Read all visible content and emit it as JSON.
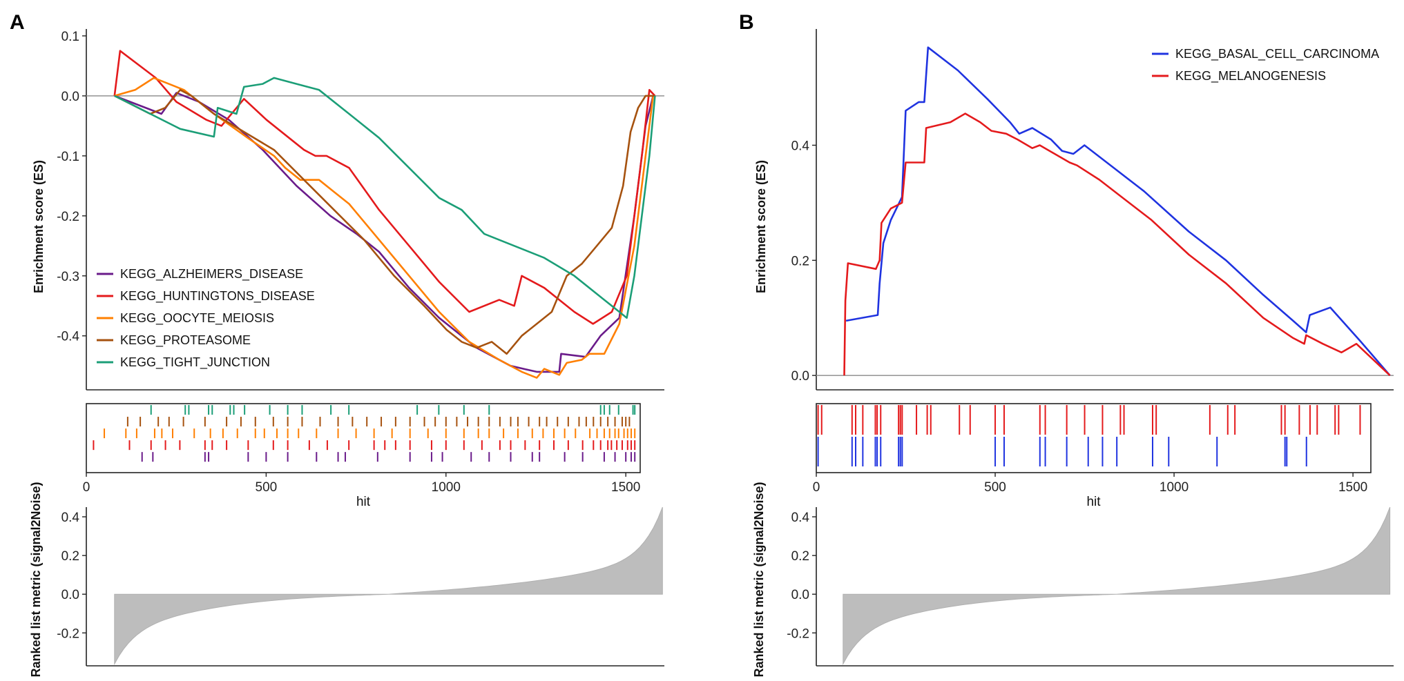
{
  "figure": {
    "panel_labels": [
      "A",
      "B"
    ]
  },
  "chart_data": [
    {
      "type": "line",
      "panel": "A",
      "title": "",
      "subplots": {
        "es": {
          "ylabel": "Enrichment score (ES)",
          "ylim": [
            -0.49,
            0.1
          ],
          "yticks": [
            0.1,
            0.0,
            -0.1,
            -0.2,
            -0.3,
            -0.4
          ],
          "ytick_labels": [
            "0.1",
            "0.0",
            "-0.1",
            "-0.2",
            "-0.3",
            "-0.4"
          ],
          "xlim": [
            0,
            1540
          ]
        },
        "hits": {
          "xlabel": "hit",
          "xticks": [
            0,
            500,
            1000,
            1500
          ],
          "xtick_labels": [
            "0",
            "500",
            "1000",
            "1500"
          ]
        },
        "metric": {
          "ylabel": "Ranked list metric (signal2Noise)",
          "ylim": [
            -0.37,
            0.45
          ],
          "yticks": [
            0.4,
            0.2,
            0.0,
            -0.2
          ],
          "ytick_labels": [
            "0.4",
            "0.2",
            "0.0",
            "-0.2"
          ],
          "x_range": [
            75,
            1535
          ],
          "min_value": -0.36,
          "max_value": 0.45
        }
      },
      "legend_position": "bottom-left",
      "series": [
        {
          "name": "KEGG_ALZHEIMERS_DISEASE",
          "color": "#6a1b8a",
          "x": [
            75,
            200,
            240,
            300,
            380,
            470,
            560,
            650,
            720,
            780,
            860,
            940,
            1040,
            1130,
            1200,
            1260,
            1265,
            1330,
            1370,
            1420,
            1460,
            1490,
            1510
          ],
          "y": [
            0.0,
            -0.03,
            0.005,
            -0.01,
            -0.04,
            -0.09,
            -0.15,
            -0.2,
            -0.23,
            -0.26,
            -0.32,
            -0.37,
            -0.42,
            -0.45,
            -0.46,
            -0.46,
            -0.43,
            -0.435,
            -0.4,
            -0.37,
            -0.2,
            -0.05,
            0.0
          ]
        },
        {
          "name": "KEGG_HUNTINGTONS_DISEASE",
          "color": "#e41a1c",
          "x": [
            75,
            90,
            185,
            240,
            320,
            360,
            420,
            480,
            540,
            580,
            610,
            640,
            700,
            780,
            860,
            940,
            1020,
            1100,
            1140,
            1160,
            1220,
            1300,
            1350,
            1400,
            1440,
            1470,
            1480,
            1500,
            1515
          ],
          "y": [
            0.0,
            0.075,
            0.03,
            -0.01,
            -0.04,
            -0.05,
            -0.005,
            -0.04,
            -0.07,
            -0.09,
            -0.1,
            -0.1,
            -0.12,
            -0.19,
            -0.25,
            -0.31,
            -0.36,
            -0.34,
            -0.35,
            -0.3,
            -0.32,
            -0.36,
            -0.38,
            -0.36,
            -0.3,
            -0.15,
            -0.1,
            0.01,
            0.0
          ]
        },
        {
          "name": "KEGG_OOCYTE_MEIOSIS",
          "color": "#ff7f00",
          "x": [
            75,
            130,
            180,
            260,
            340,
            430,
            500,
            530,
            570,
            610,
            620,
            660,
            700,
            780,
            860,
            940,
            1020,
            1100,
            1160,
            1200,
            1220,
            1260,
            1280,
            1320,
            1340,
            1380,
            1420,
            1460,
            1490,
            1510
          ],
          "y": [
            0.0,
            0.01,
            0.03,
            0.01,
            -0.03,
            -0.07,
            -0.1,
            -0.12,
            -0.14,
            -0.14,
            -0.14,
            -0.16,
            -0.18,
            -0.24,
            -0.3,
            -0.36,
            -0.41,
            -0.44,
            -0.46,
            -0.47,
            -0.455,
            -0.465,
            -0.445,
            -0.44,
            -0.43,
            -0.43,
            -0.38,
            -0.25,
            -0.1,
            0.0
          ]
        },
        {
          "name": "KEGG_PROTEASOME",
          "color": "#a6520f",
          "x": [
            75,
            170,
            210,
            250,
            280,
            340,
            420,
            500,
            580,
            660,
            740,
            820,
            900,
            960,
            1000,
            1040,
            1080,
            1120,
            1160,
            1200,
            1240,
            1280,
            1320,
            1360,
            1400,
            1430,
            1450,
            1470,
            1490,
            1505,
            1515
          ],
          "y": [
            0.0,
            -0.03,
            -0.02,
            0.01,
            0.0,
            -0.03,
            -0.06,
            -0.09,
            -0.14,
            -0.19,
            -0.24,
            -0.3,
            -0.35,
            -0.39,
            -0.41,
            -0.42,
            -0.41,
            -0.43,
            -0.4,
            -0.38,
            -0.36,
            -0.3,
            -0.28,
            -0.25,
            -0.22,
            -0.15,
            -0.06,
            -0.02,
            0.0,
            0.0,
            0.0
          ]
        },
        {
          "name": "KEGG_TIGHT_JUNCTION",
          "color": "#1b9e77",
          "x": [
            75,
            250,
            340,
            350,
            400,
            420,
            470,
            500,
            560,
            620,
            700,
            780,
            860,
            940,
            1000,
            1060,
            1140,
            1220,
            1300,
            1380,
            1420,
            1440,
            1460,
            1480,
            1500,
            1515
          ],
          "y": [
            0.0,
            -0.055,
            -0.068,
            -0.02,
            -0.03,
            0.015,
            0.02,
            0.03,
            0.02,
            0.01,
            -0.03,
            -0.07,
            -0.12,
            -0.17,
            -0.19,
            -0.23,
            -0.25,
            -0.27,
            -0.3,
            -0.34,
            -0.36,
            -0.37,
            -0.3,
            -0.2,
            -0.1,
            0.0
          ]
        }
      ],
      "hits": [
        {
          "name": "KEGG_TIGHT_JUNCTION",
          "color": "#1b9e77",
          "positions": [
            180,
            275,
            285,
            340,
            350,
            400,
            410,
            440,
            510,
            560,
            600,
            680,
            730,
            920,
            980,
            1050,
            1120,
            1430,
            1440,
            1455,
            1480,
            1520,
            1525
          ]
        },
        {
          "name": "KEGG_PROTEASOME",
          "color": "#a6520f",
          "positions": [
            115,
            150,
            200,
            230,
            270,
            330,
            390,
            430,
            470,
            520,
            560,
            600,
            650,
            700,
            740,
            780,
            820,
            860,
            900,
            940,
            970,
            1000,
            1030,
            1060,
            1090,
            1120,
            1150,
            1180,
            1200,
            1230,
            1260,
            1280,
            1310,
            1340,
            1370,
            1390,
            1410,
            1430,
            1450,
            1470,
            1490,
            1500,
            1510
          ]
        },
        {
          "name": "KEGG_OOCYTE_MEIOSIS",
          "color": "#ff7f00",
          "positions": [
            50,
            110,
            140,
            190,
            210,
            240,
            300,
            345,
            380,
            420,
            470,
            495,
            530,
            560,
            590,
            640,
            700,
            750,
            800,
            850,
            900,
            950,
            1000,
            1050,
            1090,
            1120,
            1160,
            1200,
            1240,
            1270,
            1300,
            1330,
            1360,
            1400,
            1420,
            1440,
            1455,
            1470,
            1480,
            1495,
            1505,
            1515,
            1525
          ]
        },
        {
          "name": "KEGG_HUNTINGTONS_DISEASE",
          "color": "#e41a1c",
          "positions": [
            20,
            120,
            180,
            220,
            260,
            330,
            350,
            390,
            450,
            520,
            560,
            620,
            670,
            730,
            800,
            830,
            860,
            900,
            960,
            1000,
            1050,
            1100,
            1150,
            1180,
            1220,
            1260,
            1300,
            1340,
            1380,
            1410,
            1430,
            1450,
            1460,
            1475,
            1490,
            1505,
            1515,
            1525
          ]
        },
        {
          "name": "KEGG_ALZHEIMERS_DISEASE",
          "color": "#6a1b8a",
          "positions": [
            155,
            185,
            330,
            340,
            450,
            500,
            560,
            640,
            700,
            720,
            810,
            900,
            960,
            990,
            1070,
            1120,
            1180,
            1240,
            1260,
            1330,
            1380,
            1440,
            1470,
            1500,
            1515,
            1525
          ]
        }
      ]
    },
    {
      "type": "line",
      "panel": "B",
      "title": "",
      "subplots": {
        "es": {
          "ylabel": "Enrichment score (ES)",
          "ylim": [
            -0.025,
            0.59
          ],
          "yticks": [
            0.4,
            0.2,
            0.0
          ],
          "ytick_labels": [
            "0.4",
            "0.2",
            "0.0"
          ],
          "xlim": [
            0,
            1550
          ]
        },
        "hits": {
          "xlabel": "hit",
          "xticks": [
            0,
            500,
            1000,
            1500
          ],
          "xtick_labels": [
            "0",
            "500",
            "1000",
            "1500"
          ]
        },
        "metric": {
          "ylabel": "Ranked list metric (signal2Noise)",
          "ylim": [
            -0.37,
            0.45
          ],
          "yticks": [
            0.4,
            0.2,
            0.0,
            -0.2
          ],
          "ytick_labels": [
            "0.4",
            "0.2",
            "0.0",
            "-0.2"
          ],
          "x_range": [
            72,
            1540
          ],
          "min_value": -0.36,
          "max_value": 0.44
        }
      },
      "legend_position": "top-right",
      "series": [
        {
          "name": "KEGG_BASAL_CELL_CARCINOMA",
          "color": "#1f33e0",
          "x": [
            80,
            165,
            170,
            180,
            200,
            230,
            240,
            275,
            290,
            300,
            380,
            460,
            520,
            545,
            580,
            630,
            660,
            690,
            720,
            800,
            880,
            1000,
            1100,
            1200,
            1280,
            1315,
            1325,
            1380,
            1460,
            1540
          ],
          "y": [
            0.095,
            0.105,
            0.16,
            0.23,
            0.27,
            0.31,
            0.46,
            0.475,
            0.475,
            0.57,
            0.53,
            0.48,
            0.44,
            0.42,
            0.43,
            0.41,
            0.39,
            0.385,
            0.4,
            0.36,
            0.32,
            0.25,
            0.2,
            0.14,
            0.095,
            0.075,
            0.105,
            0.118,
            0.06,
            0.0
          ]
        },
        {
          "name": "KEGG_MELANOGENESIS",
          "color": "#e41a1c",
          "x": [
            75,
            78,
            85,
            160,
            170,
            175,
            200,
            230,
            240,
            290,
            295,
            360,
            400,
            440,
            470,
            510,
            540,
            580,
            600,
            640,
            680,
            700,
            760,
            820,
            900,
            1000,
            1100,
            1200,
            1280,
            1310,
            1315,
            1360,
            1410,
            1450,
            1540
          ],
          "y": [
            0.0,
            0.13,
            0.195,
            0.185,
            0.2,
            0.265,
            0.29,
            0.3,
            0.37,
            0.37,
            0.43,
            0.44,
            0.455,
            0.44,
            0.425,
            0.42,
            0.41,
            0.395,
            0.4,
            0.385,
            0.37,
            0.365,
            0.34,
            0.31,
            0.27,
            0.21,
            0.16,
            0.1,
            0.065,
            0.055,
            0.07,
            0.055,
            0.04,
            0.055,
            0.0
          ]
        }
      ],
      "hits": [
        {
          "name": "KEGG_MELANOGENESIS",
          "color": "#e41a1c",
          "positions": [
            5,
            15,
            100,
            110,
            130,
            165,
            170,
            180,
            230,
            235,
            240,
            280,
            310,
            320,
            400,
            430,
            500,
            525,
            625,
            640,
            700,
            750,
            800,
            850,
            860,
            940,
            950,
            1100,
            1150,
            1170,
            1300,
            1310,
            1350,
            1380,
            1400,
            1450,
            1460,
            1520
          ]
        },
        {
          "name": "KEGG_BASAL_CELL_CARCINOMA",
          "color": "#1f33e0",
          "positions": [
            5,
            100,
            110,
            130,
            165,
            170,
            180,
            230,
            235,
            240,
            500,
            525,
            625,
            640,
            700,
            760,
            800,
            840,
            940,
            985,
            1120,
            1310,
            1315,
            1370
          ]
        }
      ]
    }
  ]
}
